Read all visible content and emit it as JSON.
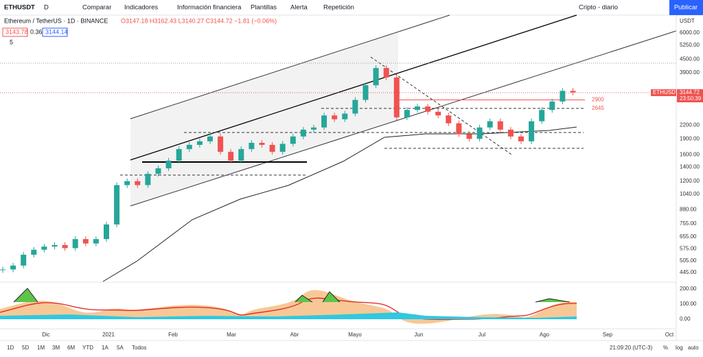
{
  "toolbar": {
    "symbol": "ETHUSDT",
    "interval": "D",
    "compare": "Comparar",
    "indicators": "Indicadores",
    "financials": "Información financiera",
    "templates": "Plantillas",
    "alert": "Alerta",
    "replay": "Repetición",
    "layout": "Cripto - diario",
    "publish": "Publicar"
  },
  "legend": {
    "title": "Ethereum / TetherUS · 1D · BINANCE",
    "ohlc": "O3147.18 H3162.43 L3140.27 C3144.72 −1.81 (−0.06%)",
    "bid": "3143.78",
    "spread": "0.36",
    "ask": "3144.14",
    "collapsed": "5"
  },
  "price_axis": {
    "unit": "USDT",
    "ticks": [
      {
        "value": 6000,
        "label": "6000.00"
      },
      {
        "value": 5250,
        "label": "5250.00"
      },
      {
        "value": 4500,
        "label": "4500.00"
      },
      {
        "value": 3900,
        "label": "3900.00"
      },
      {
        "value": 2200,
        "label": "2200.00"
      },
      {
        "value": 1900,
        "label": "1900.00"
      },
      {
        "value": 1600,
        "label": "1600.00"
      },
      {
        "value": 1400,
        "label": "1400.00"
      },
      {
        "value": 1200,
        "label": "1200.00"
      },
      {
        "value": 1040,
        "label": "1040.00"
      },
      {
        "value": 880,
        "label": "880.00"
      },
      {
        "value": 755,
        "label": "755.00"
      },
      {
        "value": 655,
        "label": "655.00"
      },
      {
        "value": 575,
        "label": "575.00"
      },
      {
        "value": 505,
        "label": "505.00"
      },
      {
        "value": 445,
        "label": "445.00"
      }
    ]
  },
  "last_price": {
    "symbol": "ETHUSDT",
    "price": "3144.72",
    "countdown": "23:50:39"
  },
  "levels": [
    2900,
    2645
  ],
  "candles": {
    "closes": [
      460,
      480,
      540,
      570,
      590,
      600,
      580,
      640,
      610,
      640,
      750,
      1150,
      1200,
      1150,
      1300,
      1380,
      1500,
      1700,
      1780,
      1850,
      1950,
      1650,
      1500,
      1700,
      1820,
      1780,
      1650,
      1800,
      1950,
      2100,
      2150,
      2450,
      2350,
      2500,
      2900,
      3400,
      4100,
      3700,
      2400,
      2600,
      2700,
      2550,
      2450,
      2250,
      2000,
      1900,
      2150,
      2300,
      2100,
      1950,
      1850,
      2300,
      2600,
      2850,
      3200,
      3144.72
    ]
  },
  "indicator_axis": [
    "200.00",
    "100.00",
    "0.00"
  ],
  "time_axis": [
    "Dic",
    "2021",
    "Feb",
    "Mar",
    "Abr",
    "Mayo",
    "Jun",
    "Jul",
    "Ago",
    "Sep",
    "Oct"
  ],
  "ranges": [
    "1D",
    "5D",
    "1M",
    "3M",
    "6M",
    "YTD",
    "1A",
    "5A",
    "Todos"
  ],
  "status": {
    "clock": "21:09:20 (UTC-3)",
    "percent": "%",
    "log": "log",
    "auto": "auto"
  }
}
